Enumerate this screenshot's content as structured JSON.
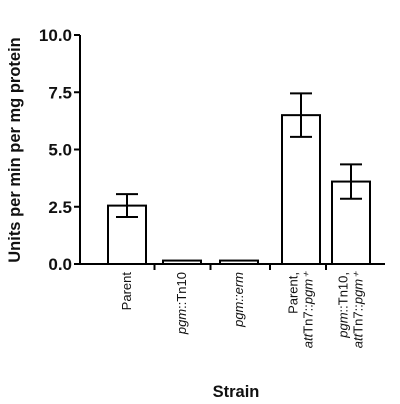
{
  "chart_data": {
    "type": "bar",
    "title": "",
    "xlabel": "Strain",
    "ylabel": "Units per min per mg protein",
    "ylim": [
      0,
      10
    ],
    "yticks": [
      "0.0",
      "2.5",
      "5.0",
      "7.5",
      "10.0"
    ],
    "grid": false,
    "categories": [
      {
        "id": "parent",
        "lines": [
          [
            {
              "t": "Parent",
              "i": false
            }
          ]
        ]
      },
      {
        "id": "pgm-tn10",
        "lines": [
          [
            {
              "t": "pgm",
              "i": true
            },
            {
              "t": "::Tn10",
              "i": false
            }
          ]
        ]
      },
      {
        "id": "pgm-erm",
        "lines": [
          [
            {
              "t": "pgm::erm",
              "i": true
            }
          ]
        ]
      },
      {
        "id": "parent-att",
        "lines": [
          [
            {
              "t": "Parent,",
              "i": false
            }
          ],
          [
            {
              "t": "att",
              "i": true
            },
            {
              "t": "Tn7::",
              "i": false
            },
            {
              "t": "pgm⁺",
              "i": true
            }
          ]
        ]
      },
      {
        "id": "pgm-tn10-att",
        "lines": [
          [
            {
              "t": "pgm",
              "i": true
            },
            {
              "t": "::Tn10,",
              "i": false
            }
          ],
          [
            {
              "t": "att",
              "i": true
            },
            {
              "t": "Tn7::",
              "i": false
            },
            {
              "t": "pgm⁺",
              "i": true
            }
          ]
        ]
      }
    ],
    "values": [
      2.55,
      0.15,
      0.15,
      6.5,
      3.6
    ],
    "errors": [
      0.5,
      0.03,
      0.03,
      0.95,
      0.75
    ],
    "colors": {
      "bar_fill": "#ffffff",
      "bar_stroke": "#000000",
      "axis": "#000000"
    }
  }
}
